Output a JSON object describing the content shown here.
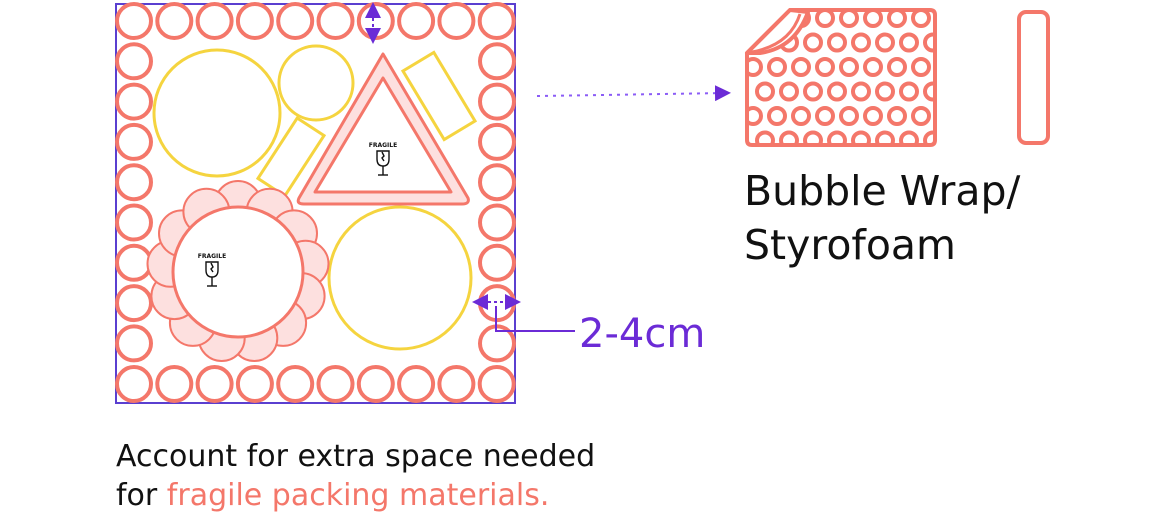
{
  "colors": {
    "bubble": "#f4776a",
    "bubble_fill": "#fde0df",
    "item_outline": "#f5d43f",
    "measure": "#6b2bd6",
    "border": "#5a3fd0",
    "text": "#111111"
  },
  "labels": {
    "fragile_1": "FRAGILE",
    "fragile_2": "FRAGILE",
    "material_line1": "Bubble Wrap/",
    "material_line2": "Styrofoam",
    "measurement": "2-4cm",
    "caption_line1": "Account for extra space needed",
    "caption_line2_plain": "for ",
    "caption_line2_accent": "fragile packing materials."
  },
  "icons": {
    "glass": "broken-glass-icon",
    "bubble_sheet": "bubble-wrap-sheet-icon",
    "foam": "styrofoam-strip-icon"
  }
}
